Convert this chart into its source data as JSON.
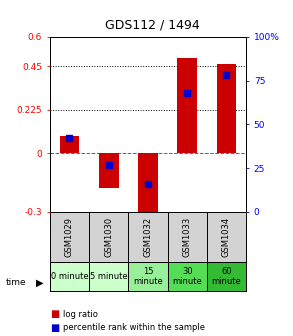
{
  "title": "GDS112 / 1494",
  "samples": [
    "GSM1029",
    "GSM1030",
    "GSM1032",
    "GSM1033",
    "GSM1034"
  ],
  "time_labels": [
    "0 minute",
    "5 minute",
    "15\nminute",
    "30\nminute",
    "60\nminute"
  ],
  "time_colors": [
    "#ccffcc",
    "#ccffcc",
    "#99ee99",
    "#55dd55",
    "#33bb33"
  ],
  "log_ratios": [
    0.09,
    -0.18,
    -0.37,
    0.49,
    0.46
  ],
  "percentile_ranks": [
    42,
    27,
    16,
    68,
    78
  ],
  "ylim_left": [
    -0.3,
    0.6
  ],
  "ylim_right": [
    0,
    100
  ],
  "left_ticks": [
    -0.3,
    0,
    0.225,
    0.45,
    0.6
  ],
  "right_ticks": [
    0,
    25,
    50,
    75,
    100
  ],
  "dotted_lines": [
    0.225,
    0.45
  ],
  "bar_color": "#cc0000",
  "dot_color": "#0000cc",
  "bar_width": 0.5,
  "dot_size": 25,
  "background_color": "#ffffff",
  "plot_bg_color": "#ffffff",
  "sample_bg_color": "#d3d3d3",
  "legend_log": "log ratio",
  "legend_pct": "percentile rank within the sample",
  "title_fontsize": 9,
  "tick_fontsize": 6.5,
  "sample_fontsize": 6,
  "time_fontsize": 6
}
